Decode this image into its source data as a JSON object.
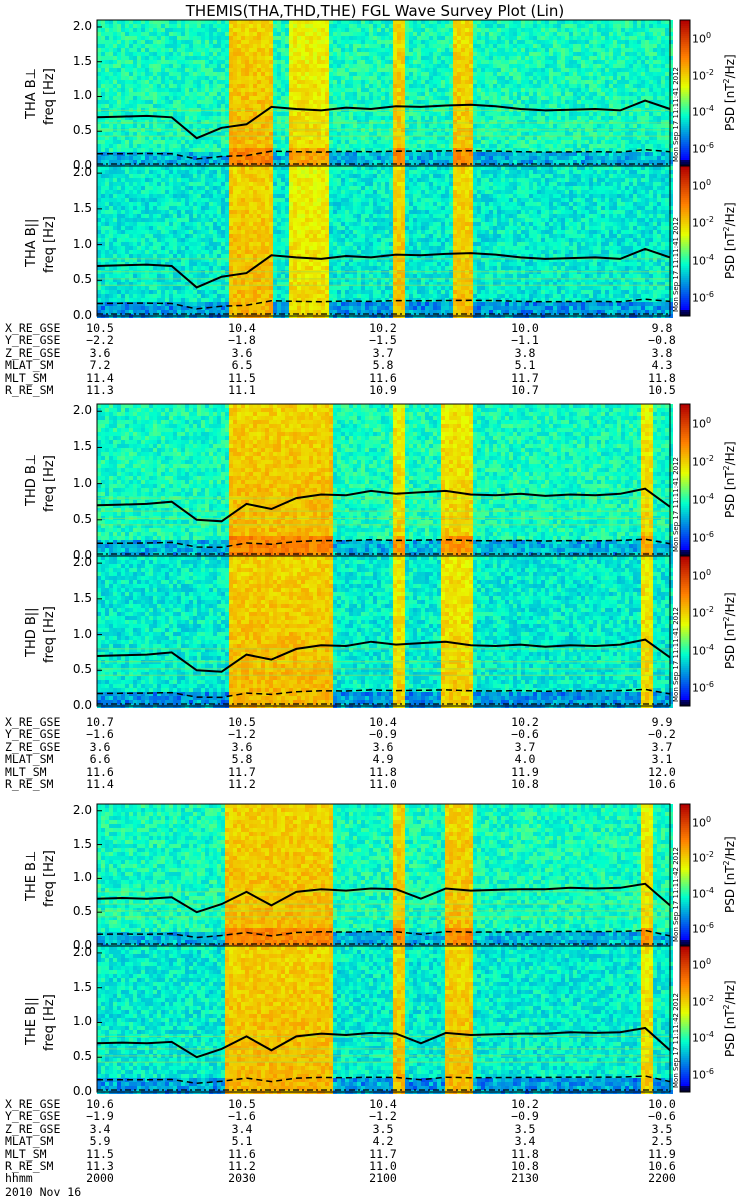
{
  "title": "THEMIS(THA,THD,THE) FGL Wave Survey Plot (Lin)",
  "date_label": "2010 Nov 16",
  "chart_data": {
    "type": "heatmap",
    "title": "THEMIS(THA,THD,THE) FGL Wave Survey Plot (Lin)",
    "y_ticks": [
      "0.0",
      "0.5",
      "1.0",
      "1.5",
      "2.0"
    ],
    "ylim": [
      0.0,
      2.1
    ],
    "color_scale": {
      "label_base": "PSD [nT",
      "label_exp": "2",
      "label_tail": "/Hz]",
      "tick_base": "10",
      "tick_exps": [
        "-6",
        "-4",
        "-2",
        "0"
      ],
      "range_log10": [
        -7,
        1
      ]
    },
    "time_ticks": [
      "2000",
      "2030",
      "2100",
      "2130",
      "2200"
    ],
    "panels": [
      {
        "label": "THA B⊥",
        "ylabel": "freq [Hz]",
        "stamp": "Mon Sep 17 11:11:41 2012",
        "fce_line": [
          0.7,
          0.71,
          0.72,
          0.7,
          0.4,
          0.55,
          0.6,
          0.85,
          0.82,
          0.8,
          0.84,
          0.82,
          0.86,
          0.85,
          0.87,
          0.88,
          0.86,
          0.82,
          0.8,
          0.81,
          0.82,
          0.8,
          0.94,
          0.82
        ]
      },
      {
        "label": "THA B||",
        "ylabel": "freq [Hz]",
        "stamp": "Mon Sep 17 11:11:41 2012",
        "fce_line": [
          0.7,
          0.71,
          0.72,
          0.7,
          0.4,
          0.55,
          0.6,
          0.85,
          0.82,
          0.8,
          0.84,
          0.82,
          0.86,
          0.85,
          0.87,
          0.88,
          0.86,
          0.82,
          0.8,
          0.81,
          0.82,
          0.8,
          0.94,
          0.82
        ]
      },
      {
        "label": "THD B⊥",
        "ylabel": "freq [Hz]",
        "stamp": "Mon Sep 17 11:11:41 2012",
        "fce_line": [
          0.7,
          0.71,
          0.72,
          0.75,
          0.5,
          0.48,
          0.72,
          0.65,
          0.8,
          0.85,
          0.84,
          0.9,
          0.86,
          0.88,
          0.9,
          0.85,
          0.84,
          0.86,
          0.83,
          0.85,
          0.84,
          0.86,
          0.93,
          0.68
        ]
      },
      {
        "label": "THD B||",
        "ylabel": "freq [Hz]",
        "stamp": "Mon Sep 17 11:11:41 2012",
        "fce_line": [
          0.7,
          0.71,
          0.72,
          0.75,
          0.5,
          0.48,
          0.72,
          0.65,
          0.8,
          0.85,
          0.84,
          0.9,
          0.86,
          0.88,
          0.9,
          0.85,
          0.84,
          0.86,
          0.83,
          0.85,
          0.84,
          0.86,
          0.93,
          0.68
        ]
      },
      {
        "label": "THE B⊥",
        "ylabel": "freq [Hz]",
        "stamp": "Mon Sep 17 11:11:42 2012",
        "fce_line": [
          0.7,
          0.71,
          0.7,
          0.72,
          0.5,
          0.62,
          0.8,
          0.6,
          0.8,
          0.84,
          0.82,
          0.85,
          0.84,
          0.7,
          0.85,
          0.82,
          0.83,
          0.84,
          0.84,
          0.86,
          0.85,
          0.86,
          0.92,
          0.6
        ]
      },
      {
        "label": "THE B||",
        "ylabel": "freq [Hz]",
        "stamp": "Mon Sep 17 11:11:42 2012",
        "fce_line": [
          0.7,
          0.71,
          0.7,
          0.72,
          0.5,
          0.62,
          0.8,
          0.6,
          0.8,
          0.84,
          0.82,
          0.85,
          0.84,
          0.7,
          0.85,
          0.82,
          0.83,
          0.84,
          0.84,
          0.86,
          0.85,
          0.86,
          0.92,
          0.6
        ]
      }
    ],
    "ephemeris": [
      {
        "labels": [
          "X_RE_GSE",
          "Y_RE_GSE",
          "Z_RE_GSE",
          "MLAT_SM",
          "MLT_SM",
          "R_RE_SM"
        ],
        "rows": [
          [
            "10.5",
            "10.4",
            "10.2",
            "10.0",
            "9.8"
          ],
          [
            "−2.2",
            "−1.8",
            "−1.5",
            "−1.1",
            "−0.8"
          ],
          [
            "3.6",
            "3.6",
            "3.7",
            "3.8",
            "3.8"
          ],
          [
            "7.2",
            "6.5",
            "5.8",
            "5.1",
            "4.3"
          ],
          [
            "11.4",
            "11.5",
            "11.6",
            "11.7",
            "11.8"
          ],
          [
            "11.3",
            "11.1",
            "10.9",
            "10.7",
            "10.5"
          ]
        ]
      },
      {
        "labels": [
          "X_RE_GSE",
          "Y_RE_GSE",
          "Z_RE_GSE",
          "MLAT_SM",
          "MLT_SM",
          "R_RE_SM"
        ],
        "rows": [
          [
            "10.7",
            "10.5",
            "10.4",
            "10.2",
            "9.9"
          ],
          [
            "−1.6",
            "−1.2",
            "−0.9",
            "−0.6",
            "−0.2"
          ],
          [
            "3.6",
            "3.6",
            "3.6",
            "3.7",
            "3.7"
          ],
          [
            "6.6",
            "5.8",
            "4.9",
            "4.0",
            "3.1"
          ],
          [
            "11.6",
            "11.7",
            "11.8",
            "11.9",
            "12.0"
          ],
          [
            "11.4",
            "11.2",
            "11.0",
            "10.8",
            "10.6"
          ]
        ]
      },
      {
        "labels": [
          "X_RE_GSE",
          "Y_RE_GSE",
          "Z_RE_GSE",
          "MLAT_SM",
          "MLT_SM",
          "R_RE_SM",
          "hhmm"
        ],
        "rows": [
          [
            "10.6",
            "10.5",
            "10.4",
            "10.2",
            "10.0"
          ],
          [
            "−1.9",
            "−1.6",
            "−1.2",
            "−0.9",
            "−0.6"
          ],
          [
            "3.4",
            "3.4",
            "3.5",
            "3.5",
            "3.5"
          ],
          [
            "5.9",
            "5.1",
            "4.2",
            "3.4",
            "2.5"
          ],
          [
            "11.5",
            "11.6",
            "11.7",
            "11.8",
            "11.9"
          ],
          [
            "11.3",
            "11.2",
            "11.0",
            "10.8",
            "10.6"
          ],
          [
            "2000",
            "2030",
            "2100",
            "2130",
            "2200"
          ]
        ]
      }
    ]
  }
}
